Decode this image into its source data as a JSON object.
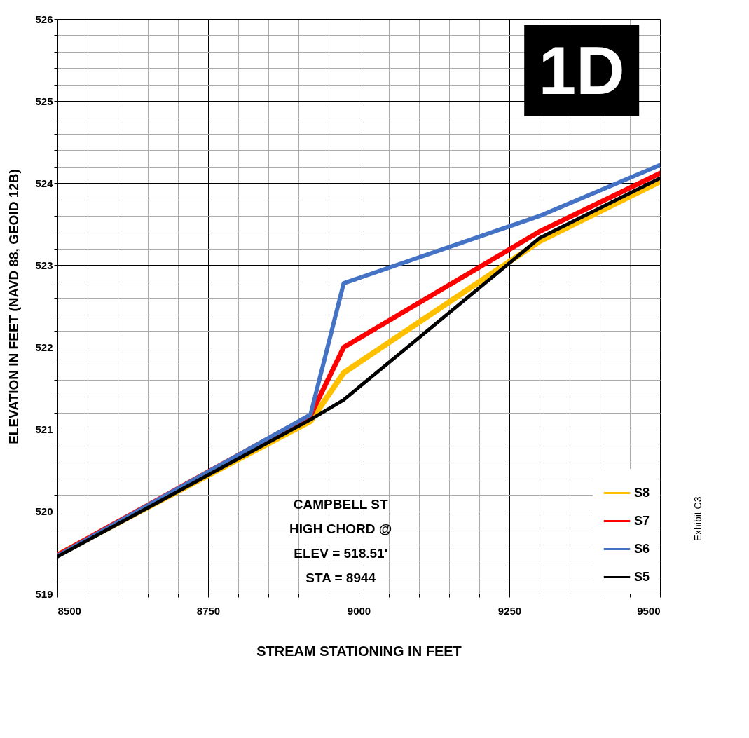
{
  "chart_data": {
    "type": "line",
    "xlabel": "STREAM STATIONING IN FEET",
    "ylabel": "ELEVATION IN FEET (NAVD 88, GEOID 12B)",
    "x": [
      8500,
      8920,
      8975,
      9300,
      9500
    ],
    "series": [
      {
        "name": "S8",
        "color": "#ffc000",
        "values": [
          519.47,
          521.1,
          521.69,
          523.29,
          524.02
        ]
      },
      {
        "name": "S7",
        "color": "#ff0000",
        "values": [
          519.47,
          521.17,
          522.0,
          523.41,
          524.12
        ]
      },
      {
        "name": "S6",
        "color": "#4472c4",
        "values": [
          519.46,
          521.18,
          522.78,
          523.6,
          524.22
        ]
      },
      {
        "name": "S5",
        "color": "#000000",
        "values": [
          519.45,
          521.12,
          521.36,
          523.33,
          524.06
        ]
      }
    ],
    "xlim": [
      8500,
      9500
    ],
    "xticks": [
      8500,
      {
        "value": 8550,
        "label": null
      },
      {
        "value": 8600,
        "label": null
      },
      {
        "value": 8650,
        "label": null
      },
      {
        "value": 8700,
        "label": null
      },
      8750,
      {
        "value": 8800,
        "label": null
      },
      {
        "value": 8850,
        "label": null
      },
      {
        "value": 8900,
        "label": null
      },
      {
        "value": 8950,
        "label": null
      },
      9000,
      {
        "value": 9050,
        "label": null
      },
      {
        "value": 9100,
        "label": null
      },
      {
        "value": 9150,
        "label": null
      },
      {
        "value": 9200,
        "label": null
      },
      9250,
      {
        "value": 9300,
        "label": null
      },
      {
        "value": 9350,
        "label": null
      },
      {
        "value": 9400,
        "label": null
      },
      {
        "value": 9450,
        "label": null
      },
      9500
    ],
    "ylim": [
      519,
      526
    ],
    "yticks": [
      519,
      {
        "value": 519.2,
        "label": null
      },
      {
        "value": 519.4,
        "label": null
      },
      {
        "value": 519.6,
        "label": null
      },
      {
        "value": 519.8,
        "label": null
      },
      520,
      {
        "value": 520.2,
        "label": null
      },
      {
        "value": 520.4,
        "label": null
      },
      {
        "value": 520.6,
        "label": null
      },
      {
        "value": 520.8,
        "label": null
      },
      521,
      {
        "value": 521.2,
        "label": null
      },
      {
        "value": 521.4,
        "label": null
      },
      {
        "value": 521.6,
        "label": null
      },
      {
        "value": 521.8,
        "label": null
      },
      522,
      {
        "value": 522.2,
        "label": null
      },
      {
        "value": 522.4,
        "label": null
      },
      {
        "value": 522.6,
        "label": null
      },
      {
        "value": 522.8,
        "label": null
      },
      523,
      {
        "value": 523.2,
        "label": null
      },
      {
        "value": 523.4,
        "label": null
      },
      {
        "value": 523.6,
        "label": null
      },
      {
        "value": 523.8,
        "label": null
      },
      524,
      {
        "value": 524.2,
        "label": null
      },
      {
        "value": 524.4,
        "label": null
      },
      {
        "value": 524.6,
        "label": null
      },
      {
        "value": 524.8,
        "label": null
      },
      525,
      {
        "value": 525.2,
        "label": null
      },
      {
        "value": 525.4,
        "label": null
      },
      {
        "value": 525.6,
        "label": null
      },
      {
        "value": 525.8,
        "label": null
      },
      526
    ],
    "grid": true,
    "legend": "bottom right",
    "marker": "none",
    "line_style": "solid",
    "annotations": [
      "1D",
      "CAMPBELL ST\nHIGH CHORD @\nELEV = 518.51'\nSTA  =  8944",
      "Exhibit C3"
    ]
  }
}
